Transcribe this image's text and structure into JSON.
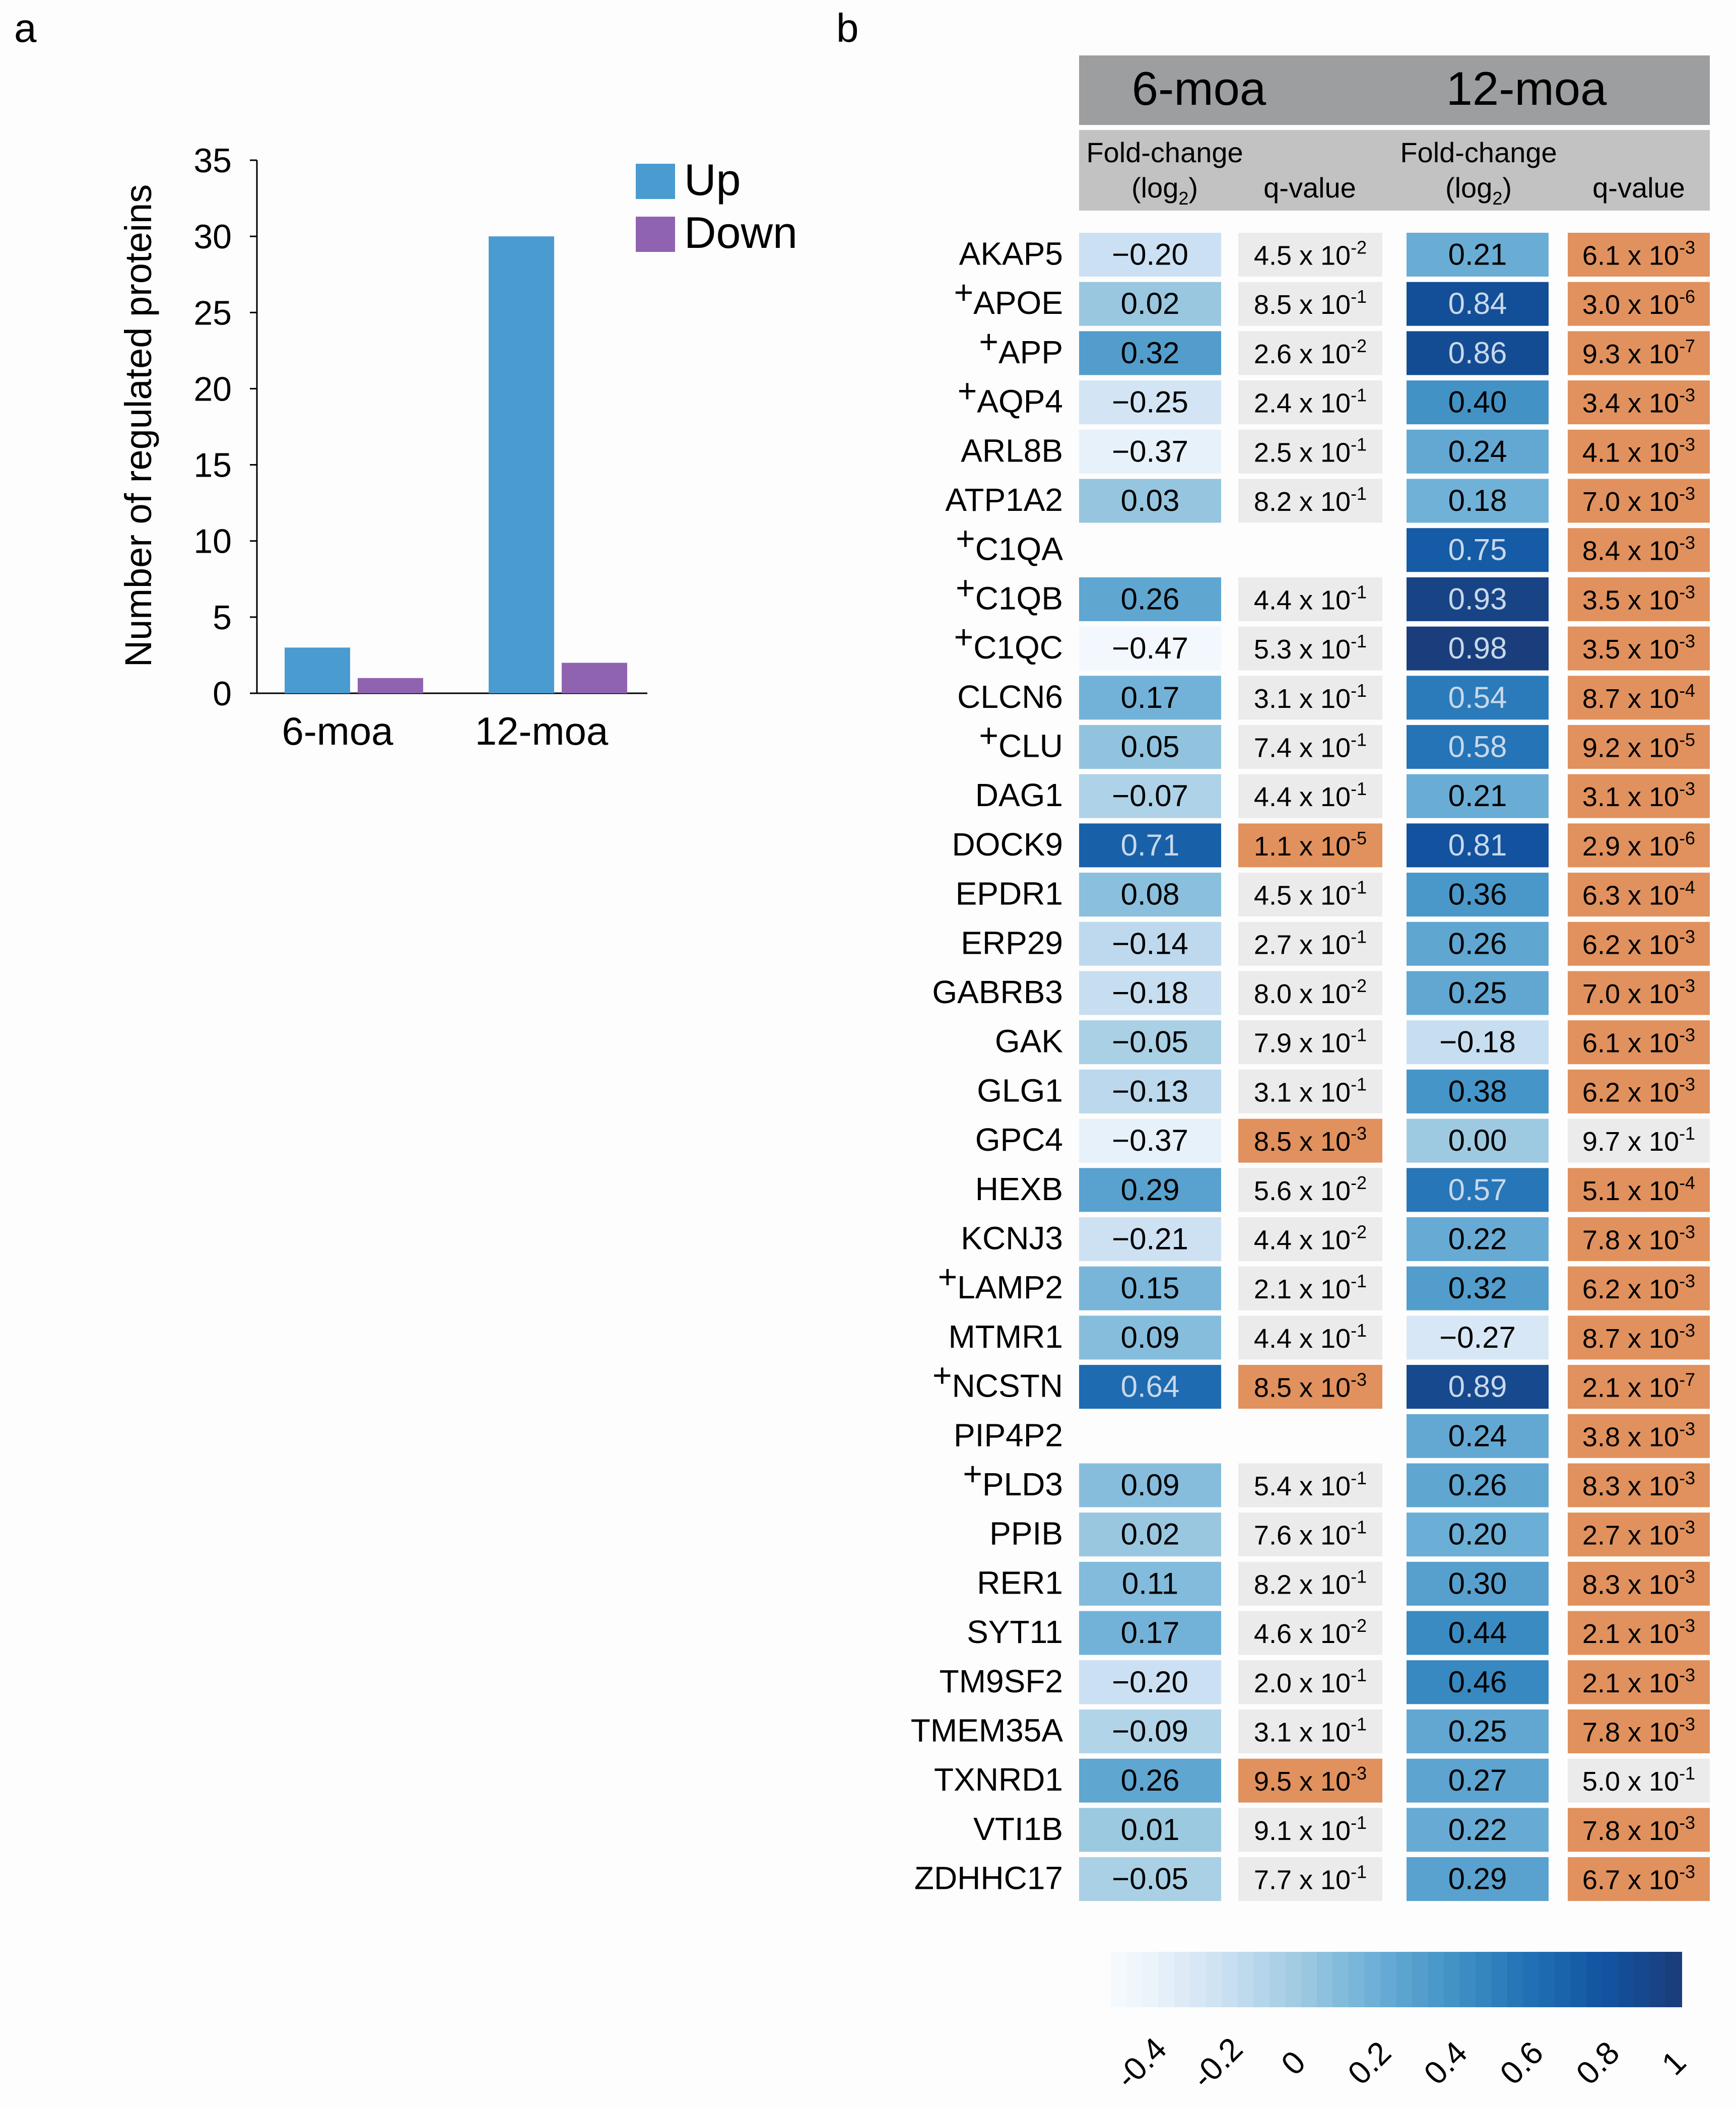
{
  "panels": {
    "a": "a",
    "b": "b"
  },
  "colors": {
    "up": "#4a9bcf",
    "down": "#8f63b0",
    "sig": "#e1915d",
    "nonsig": "#ebebeb",
    "header_dark": "#9d9e9f",
    "header_light": "#c2c2c3"
  },
  "chart_data": [
    {
      "type": "bar",
      "title": "",
      "xlabel": "",
      "ylabel": "Number of regulated proteins",
      "ylim": [
        0,
        35
      ],
      "yticks": [
        0,
        5,
        10,
        15,
        20,
        25,
        30,
        35
      ],
      "categories": [
        "6-moa",
        "12-moa"
      ],
      "series": [
        {
          "name": "Up",
          "values": [
            3,
            30
          ]
        },
        {
          "name": "Down",
          "values": [
            1,
            2
          ]
        }
      ],
      "legend": "top-right"
    },
    {
      "type": "heatmap",
      "groups": [
        "6-moa",
        "12-moa"
      ],
      "col_fc_label": "Fold-change",
      "col_fc_sub_prefix": "(log",
      "col_fc_sub_index": "2",
      "col_fc_sub_suffix": ")",
      "col_q_label": "q-value",
      "times_sign": "x",
      "base": "10",
      "marker": "+",
      "rows": [
        {
          "gene": "AKAP5",
          "marked": false,
          "fc6": -0.2,
          "q6": "4.5",
          "e6": "-2",
          "s6": false,
          "fc12": 0.21,
          "q12": "6.1",
          "e12": "-3",
          "s12": true
        },
        {
          "gene": "APOE",
          "marked": true,
          "fc6": 0.02,
          "q6": "8.5",
          "e6": "-1",
          "s6": false,
          "fc12": 0.84,
          "q12": "3.0",
          "e12": "-6",
          "s12": true
        },
        {
          "gene": "APP",
          "marked": true,
          "fc6": 0.32,
          "q6": "2.6",
          "e6": "-2",
          "s6": false,
          "fc12": 0.86,
          "q12": "9.3",
          "e12": "-7",
          "s12": true
        },
        {
          "gene": "AQP4",
          "marked": true,
          "fc6": -0.25,
          "q6": "2.4",
          "e6": "-1",
          "s6": false,
          "fc12": 0.4,
          "q12": "3.4",
          "e12": "-3",
          "s12": true
        },
        {
          "gene": "ARL8B",
          "marked": false,
          "fc6": -0.37,
          "q6": "2.5",
          "e6": "-1",
          "s6": false,
          "fc12": 0.24,
          "q12": "4.1",
          "e12": "-3",
          "s12": true
        },
        {
          "gene": "ATP1A2",
          "marked": false,
          "fc6": 0.03,
          "q6": "8.2",
          "e6": "-1",
          "s6": false,
          "fc12": 0.18,
          "q12": "7.0",
          "e12": "-3",
          "s12": true
        },
        {
          "gene": "C1QA",
          "marked": true,
          "fc6": null,
          "q6": null,
          "e6": null,
          "s6": false,
          "fc12": 0.75,
          "q12": "8.4",
          "e12": "-3",
          "s12": true
        },
        {
          "gene": "C1QB",
          "marked": true,
          "fc6": 0.26,
          "q6": "4.4",
          "e6": "-1",
          "s6": false,
          "fc12": 0.93,
          "q12": "3.5",
          "e12": "-3",
          "s12": true
        },
        {
          "gene": "C1QC",
          "marked": true,
          "fc6": -0.47,
          "q6": "5.3",
          "e6": "-1",
          "s6": false,
          "fc12": 0.98,
          "q12": "3.5",
          "e12": "-3",
          "s12": true
        },
        {
          "gene": "CLCN6",
          "marked": false,
          "fc6": 0.17,
          "q6": "3.1",
          "e6": "-1",
          "s6": false,
          "fc12": 0.54,
          "q12": "8.7",
          "e12": "-4",
          "s12": true
        },
        {
          "gene": "CLU",
          "marked": true,
          "fc6": 0.05,
          "q6": "7.4",
          "e6": "-1",
          "s6": false,
          "fc12": 0.58,
          "q12": "9.2",
          "e12": "-5",
          "s12": true
        },
        {
          "gene": "DAG1",
          "marked": false,
          "fc6": -0.07,
          "q6": "4.4",
          "e6": "-1",
          "s6": false,
          "fc12": 0.21,
          "q12": "3.1",
          "e12": "-3",
          "s12": true
        },
        {
          "gene": "DOCK9",
          "marked": false,
          "fc6": 0.71,
          "q6": "1.1",
          "e6": "-5",
          "s6": true,
          "fc12": 0.81,
          "q12": "2.9",
          "e12": "-6",
          "s12": true
        },
        {
          "gene": "EPDR1",
          "marked": false,
          "fc6": 0.08,
          "q6": "4.5",
          "e6": "-1",
          "s6": false,
          "fc12": 0.36,
          "q12": "6.3",
          "e12": "-4",
          "s12": true
        },
        {
          "gene": "ERP29",
          "marked": false,
          "fc6": -0.14,
          "q6": "2.7",
          "e6": "-1",
          "s6": false,
          "fc12": 0.26,
          "q12": "6.2",
          "e12": "-3",
          "s12": true
        },
        {
          "gene": "GABRB3",
          "marked": false,
          "fc6": -0.18,
          "q6": "8.0",
          "e6": "-2",
          "s6": false,
          "fc12": 0.25,
          "q12": "7.0",
          "e12": "-3",
          "s12": true
        },
        {
          "gene": "GAK",
          "marked": false,
          "fc6": -0.05,
          "q6": "7.9",
          "e6": "-1",
          "s6": false,
          "fc12": -0.18,
          "q12": "6.1",
          "e12": "-3",
          "s12": true
        },
        {
          "gene": "GLG1",
          "marked": false,
          "fc6": -0.13,
          "q6": "3.1",
          "e6": "-1",
          "s6": false,
          "fc12": 0.38,
          "q12": "6.2",
          "e12": "-3",
          "s12": true
        },
        {
          "gene": "GPC4",
          "marked": false,
          "fc6": -0.37,
          "q6": "8.5",
          "e6": "-3",
          "s6": true,
          "fc12": 0.0,
          "q12": "9.7",
          "e12": "-1",
          "s12": false
        },
        {
          "gene": "HEXB",
          "marked": false,
          "fc6": 0.29,
          "q6": "5.6",
          "e6": "-2",
          "s6": false,
          "fc12": 0.57,
          "q12": "5.1",
          "e12": "-4",
          "s12": true
        },
        {
          "gene": "KCNJ3",
          "marked": false,
          "fc6": -0.21,
          "q6": "4.4",
          "e6": "-2",
          "s6": false,
          "fc12": 0.22,
          "q12": "7.8",
          "e12": "-3",
          "s12": true
        },
        {
          "gene": "LAMP2",
          "marked": true,
          "fc6": 0.15,
          "q6": "2.1",
          "e6": "-1",
          "s6": false,
          "fc12": 0.32,
          "q12": "6.2",
          "e12": "-3",
          "s12": true
        },
        {
          "gene": "MTMR1",
          "marked": false,
          "fc6": 0.09,
          "q6": "4.4",
          "e6": "-1",
          "s6": false,
          "fc12": -0.27,
          "q12": "8.7",
          "e12": "-3",
          "s12": true
        },
        {
          "gene": "NCSTN",
          "marked": true,
          "fc6": 0.64,
          "q6": "8.5",
          "e6": "-3",
          "s6": true,
          "fc12": 0.89,
          "q12": "2.1",
          "e12": "-7",
          "s12": true
        },
        {
          "gene": "PIP4P2",
          "marked": false,
          "fc6": null,
          "q6": null,
          "e6": null,
          "s6": false,
          "fc12": 0.24,
          "q12": "3.8",
          "e12": "-3",
          "s12": true
        },
        {
          "gene": "PLD3",
          "marked": true,
          "fc6": 0.09,
          "q6": "5.4",
          "e6": "-1",
          "s6": false,
          "fc12": 0.26,
          "q12": "8.3",
          "e12": "-3",
          "s12": true
        },
        {
          "gene": "PPIB",
          "marked": false,
          "fc6": 0.02,
          "q6": "7.6",
          "e6": "-1",
          "s6": false,
          "fc12": 0.2,
          "q12": "2.7",
          "e12": "-3",
          "s12": true
        },
        {
          "gene": "RER1",
          "marked": false,
          "fc6": 0.11,
          "q6": "8.2",
          "e6": "-1",
          "s6": false,
          "fc12": 0.3,
          "q12": "8.3",
          "e12": "-3",
          "s12": true
        },
        {
          "gene": "SYT11",
          "marked": false,
          "fc6": 0.17,
          "q6": "4.6",
          "e6": "-2",
          "s6": false,
          "fc12": 0.44,
          "q12": "2.1",
          "e12": "-3",
          "s12": true
        },
        {
          "gene": "TM9SF2",
          "marked": false,
          "fc6": -0.2,
          "q6": "2.0",
          "e6": "-1",
          "s6": false,
          "fc12": 0.46,
          "q12": "2.1",
          "e12": "-3",
          "s12": true
        },
        {
          "gene": "TMEM35A",
          "marked": false,
          "fc6": -0.09,
          "q6": "3.1",
          "e6": "-1",
          "s6": false,
          "fc12": 0.25,
          "q12": "7.8",
          "e12": "-3",
          "s12": true
        },
        {
          "gene": "TXNRD1",
          "marked": false,
          "fc6": 0.26,
          "q6": "9.5",
          "e6": "-3",
          "s6": true,
          "fc12": 0.27,
          "q12": "5.0",
          "e12": "-1",
          "s12": false
        },
        {
          "gene": "VTI1B",
          "marked": false,
          "fc6": 0.01,
          "q6": "9.1",
          "e6": "-1",
          "s6": false,
          "fc12": 0.22,
          "q12": "7.8",
          "e12": "-3",
          "s12": true
        },
        {
          "gene": "ZDHHC17",
          "marked": false,
          "fc6": -0.05,
          "q6": "7.7",
          "e6": "-1",
          "s6": false,
          "fc12": 0.29,
          "q12": "6.7",
          "e12": "-3",
          "s12": true
        }
      ],
      "colorbar": {
        "range": [
          -0.5,
          1.0
        ],
        "ticks": [
          -0.4,
          -0.2,
          0,
          0.2,
          0.4,
          0.6,
          0.8,
          1
        ],
        "tick_labels": [
          "-0.4",
          "-0.2",
          "0",
          "0.2",
          "0.4",
          "0.6",
          "0.8",
          "1"
        ]
      }
    }
  ]
}
